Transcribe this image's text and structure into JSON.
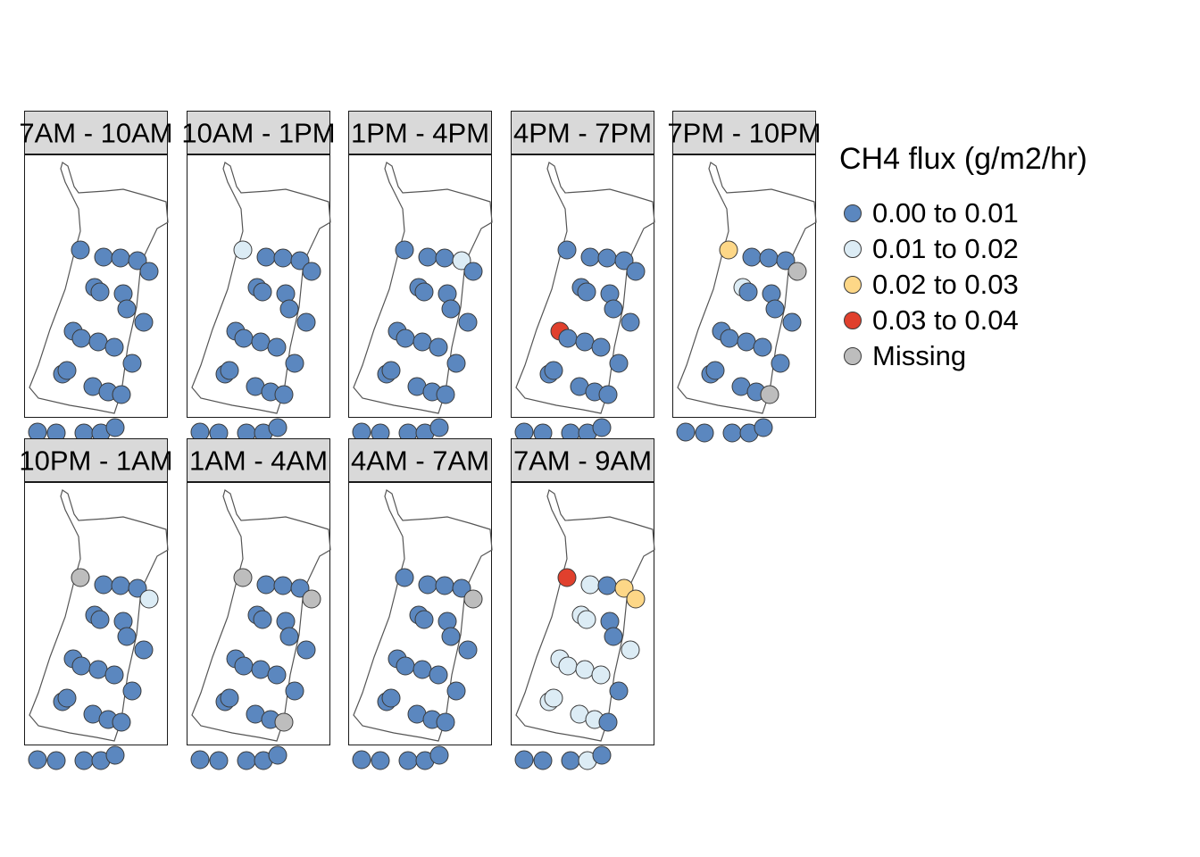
{
  "legend": {
    "title": "CH4 flux (g/m2/hr)",
    "classes": [
      {
        "label": "0.00 to 0.01",
        "color": "#5b87bf"
      },
      {
        "label": "0.01 to 0.02",
        "color": "#dcecf5"
      },
      {
        "label": "0.02 to 0.03",
        "color": "#fdd787"
      },
      {
        "label": "0.03 to 0.04",
        "color": "#e0402d"
      },
      {
        "label": "Missing",
        "color": "#bdbdbd"
      }
    ]
  },
  "panels": [
    {
      "label": "7AM - 10AM",
      "classes": [
        0,
        0,
        0,
        0,
        0,
        0,
        0,
        0,
        0,
        0,
        0,
        0,
        0,
        0,
        0,
        0,
        0,
        0,
        0,
        0,
        0,
        0,
        0,
        0,
        0
      ]
    },
    {
      "label": "10AM - 1PM",
      "classes": [
        1,
        0,
        0,
        0,
        0,
        0,
        0,
        0,
        0,
        0,
        0,
        0,
        0,
        0,
        0,
        0,
        0,
        0,
        0,
        0,
        0,
        0,
        0,
        0,
        0
      ]
    },
    {
      "label": "1PM - 4PM",
      "classes": [
        0,
        0,
        0,
        1,
        0,
        0,
        0,
        0,
        0,
        0,
        0,
        0,
        0,
        0,
        0,
        0,
        0,
        0,
        0,
        0,
        0,
        0,
        0,
        0,
        0
      ]
    },
    {
      "label": "4PM - 7PM",
      "classes": [
        0,
        0,
        0,
        0,
        0,
        0,
        0,
        0,
        0,
        0,
        3,
        0,
        0,
        0,
        0,
        0,
        0,
        0,
        0,
        0,
        0,
        0,
        0,
        0,
        0
      ]
    },
    {
      "label": "7PM - 10PM",
      "classes": [
        2,
        0,
        0,
        0,
        4,
        1,
        0,
        0,
        0,
        0,
        0,
        0,
        0,
        0,
        0,
        0,
        0,
        0,
        0,
        4,
        0,
        0,
        0,
        0,
        0
      ]
    },
    {
      "label": "10PM - 1AM",
      "classes": [
        4,
        0,
        0,
        0,
        1,
        0,
        0,
        0,
        0,
        0,
        0,
        0,
        0,
        0,
        0,
        0,
        0,
        0,
        0,
        0,
        0,
        0,
        0,
        0,
        0
      ]
    },
    {
      "label": "1AM - 4AM",
      "classes": [
        4,
        0,
        0,
        0,
        4,
        0,
        0,
        0,
        0,
        0,
        0,
        0,
        0,
        0,
        0,
        0,
        0,
        0,
        0,
        4,
        0,
        0,
        0,
        0,
        0
      ]
    },
    {
      "label": "4AM - 7AM",
      "classes": [
        0,
        0,
        0,
        0,
        4,
        0,
        0,
        0,
        0,
        0,
        0,
        0,
        0,
        0,
        0,
        0,
        0,
        0,
        0,
        0,
        0,
        0,
        0,
        0,
        0
      ]
    },
    {
      "label": "7AM - 9AM",
      "classes": [
        3,
        1,
        0,
        2,
        2,
        1,
        1,
        0,
        0,
        1,
        1,
        1,
        1,
        1,
        0,
        1,
        1,
        1,
        1,
        0,
        0,
        0,
        0,
        1,
        0
      ]
    }
  ]
}
